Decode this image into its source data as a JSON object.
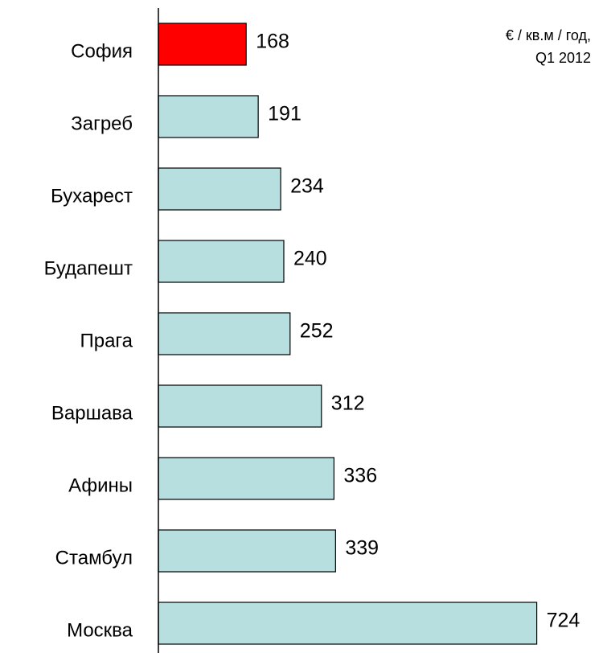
{
  "chart_data": {
    "type": "bar",
    "orientation": "horizontal",
    "annotation": [
      "€ / кв.м / год,",
      "Q1 2012"
    ],
    "categories": [
      "София",
      "Загреб",
      "Бухарест",
      "Будапешт",
      "Прага",
      "Варшава",
      "Афины",
      "Стамбул",
      "Москва"
    ],
    "values": [
      168,
      191,
      234,
      240,
      252,
      312,
      336,
      339,
      724
    ],
    "colors": [
      "#ff0000",
      "#b7dfe0",
      "#b7dfe0",
      "#b7dfe0",
      "#b7dfe0",
      "#b7dfe0",
      "#b7dfe0",
      "#b7dfe0",
      "#b7dfe0"
    ]
  }
}
